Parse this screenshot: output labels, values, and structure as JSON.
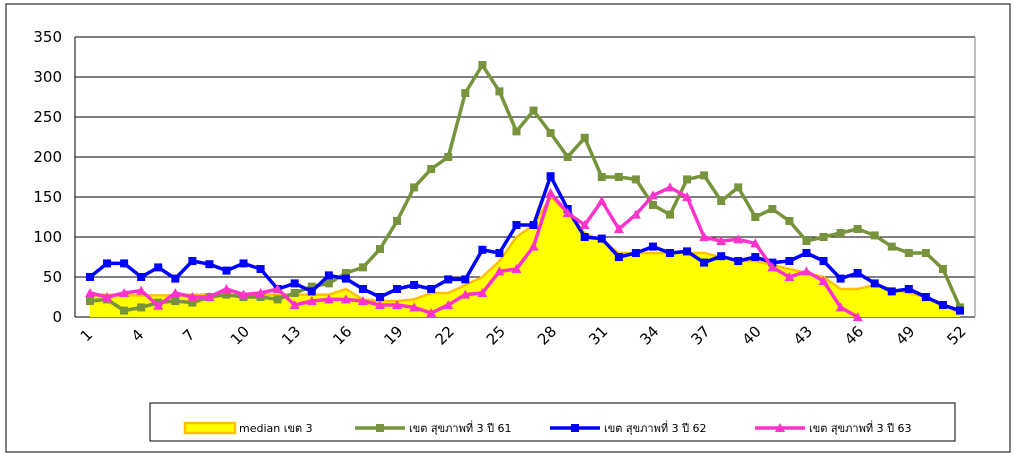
{
  "chart_data": {
    "type": "line",
    "categories": [
      "1",
      null,
      null,
      "4",
      null,
      null,
      "7",
      null,
      null,
      "10",
      null,
      null,
      "13",
      null,
      null,
      "16",
      null,
      null,
      "19",
      null,
      null,
      "22",
      null,
      null,
      "25",
      null,
      null,
      "28",
      null,
      null,
      "31",
      null,
      null,
      "34",
      null,
      null,
      "37",
      null,
      null,
      "40",
      null,
      null,
      "43",
      null,
      null,
      "46",
      null,
      null,
      "49",
      null,
      null,
      "52"
    ],
    "series": [
      {
        "name": "median เขต 3",
        "color": "#ffff00",
        "line_color": "#ffc000",
        "style": "area",
        "values": [
          28,
          28,
          27,
          27,
          27,
          27,
          28,
          28,
          28,
          28,
          28,
          28,
          28,
          28,
          28,
          35,
          22,
          20,
          20,
          22,
          30,
          30,
          40,
          50,
          70,
          100,
          115,
          150,
          130,
          105,
          95,
          80,
          80,
          80,
          80,
          80,
          80,
          75,
          70,
          70,
          65,
          60,
          55,
          50,
          35,
          35,
          40,
          35,
          30,
          25,
          15,
          5
        ]
      },
      {
        "name": "เขต สุขภาพที่ 3 ปี 61",
        "color": "#77933c",
        "marker": "square",
        "values": [
          20,
          22,
          8,
          12,
          18,
          20,
          18,
          25,
          28,
          25,
          25,
          22,
          30,
          38,
          42,
          55,
          62,
          85,
          120,
          162,
          185,
          200,
          280,
          315,
          282,
          232,
          258,
          230,
          200,
          224,
          175,
          175,
          172,
          140,
          128,
          172,
          177,
          145,
          162,
          125,
          135,
          120,
          95,
          100,
          105,
          110,
          102,
          88,
          80,
          80,
          60,
          12
        ]
      },
      {
        "name": "เขต สุขภาพที่ 3 ปี 62",
        "color": "#0000ff",
        "marker": "square",
        "values": [
          50,
          67,
          67,
          50,
          62,
          48,
          70,
          66,
          58,
          67,
          60,
          35,
          42,
          32,
          52,
          48,
          35,
          25,
          35,
          40,
          35,
          47,
          47,
          84,
          80,
          115,
          115,
          176,
          135,
          100,
          98,
          75,
          80,
          88,
          80,
          82,
          68,
          76,
          70,
          75,
          68,
          70,
          80,
          70,
          48,
          55,
          42,
          32,
          35,
          25,
          15,
          8
        ]
      },
      {
        "name": "เขต สุขภาพที่ 3 ปี 63",
        "color": "#ff33cc",
        "marker": "triangle",
        "values": [
          30,
          25,
          30,
          33,
          14,
          30,
          25,
          25,
          35,
          28,
          30,
          35,
          15,
          20,
          22,
          22,
          20,
          15,
          15,
          12,
          5,
          15,
          28,
          30,
          57,
          60,
          88,
          155,
          130,
          115,
          145,
          110,
          128,
          152,
          162,
          150,
          100,
          95,
          97,
          92,
          62,
          50,
          57,
          45,
          12,
          0,
          null,
          null,
          null,
          null,
          null,
          null
        ]
      }
    ],
    "ylim": [
      0,
      350
    ],
    "yticks": [
      0,
      50,
      100,
      150,
      200,
      250,
      300,
      350
    ],
    "grid": true,
    "legend": "bottom"
  }
}
